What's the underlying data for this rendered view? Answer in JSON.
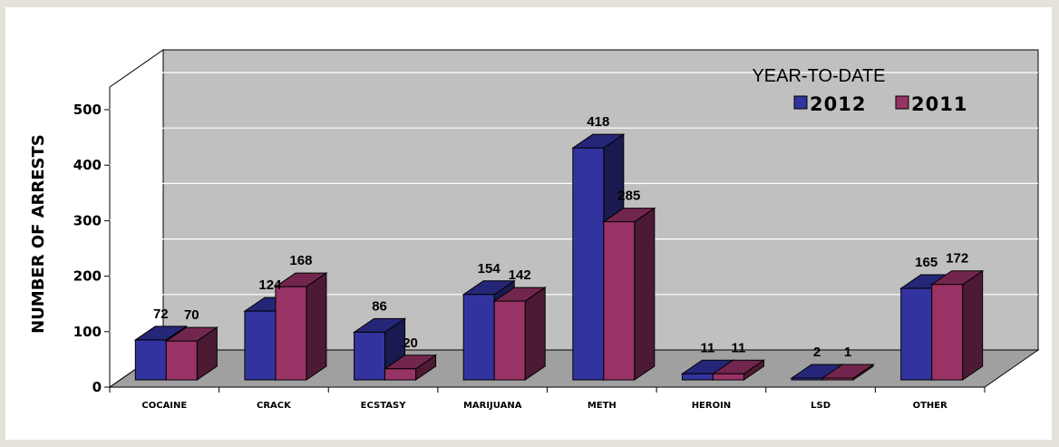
{
  "chart_data": {
    "type": "bar",
    "ylabel": "NUMBER OF ARRESTS",
    "ylim": [
      0,
      500
    ],
    "yticks": [
      "0",
      "100",
      "200",
      "300",
      "400",
      "500"
    ],
    "categories": [
      "COCAINE",
      "CRACK",
      "ECSTASY",
      "MARIJUANA",
      "METH",
      "HEROIN",
      "LSD",
      "OTHER"
    ],
    "series": [
      {
        "name": "2012",
        "values": [
          72,
          124,
          86,
          154,
          418,
          11,
          2,
          165
        ]
      },
      {
        "name": "2011",
        "values": [
          70,
          168,
          20,
          142,
          285,
          11,
          1,
          172
        ]
      }
    ],
    "legend_title": "YEAR-TO-DATE",
    "legend_position": "top-right",
    "grid": true,
    "colors": {
      "series_2012": "#3333a0",
      "series_2011": "#993366",
      "wall": "#c0c0c0",
      "floor": "#a0a0a0"
    }
  }
}
